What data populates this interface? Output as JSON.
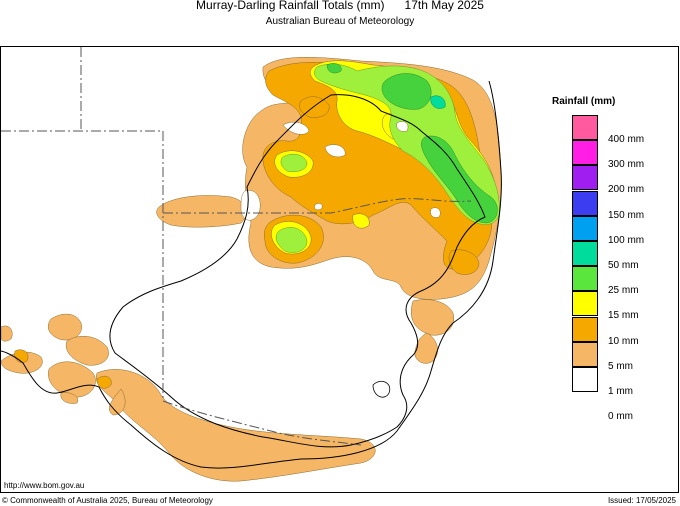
{
  "header": {
    "title": "Murray-Darling Rainfall Totals (mm)      17th May 2025",
    "subtitle": "Australian Bureau of Meteorology"
  },
  "legend": {
    "title": "Rainfall (mm)",
    "items": [
      {
        "label": "400 mm",
        "color": "#ff5aa0"
      },
      {
        "label": "300 mm",
        "color": "#ff1ee6"
      },
      {
        "label": "200 mm",
        "color": "#a01ef0"
      },
      {
        "label": "150 mm",
        "color": "#3c3cf0"
      },
      {
        "label": "100 mm",
        "color": "#00a0f0"
      },
      {
        "label": "50 mm",
        "color": "#00dc9b"
      },
      {
        "label": "25 mm",
        "color": "#5ae63c"
      },
      {
        "label": "15 mm",
        "color": "#ffff00"
      },
      {
        "label": "10 mm",
        "color": "#f5a800"
      },
      {
        "label": "5 mm",
        "color": "#f5b766"
      },
      {
        "label": "1 mm",
        "color": "#ffffff"
      },
      {
        "label": "0 mm",
        "color": ""
      }
    ]
  },
  "footer": {
    "url": "http://www.bom.gov.au",
    "copyright": "© Commonwealth of Australia 2025, Bureau of Meteorology",
    "issued": "Issued: 17/05/2025"
  }
}
